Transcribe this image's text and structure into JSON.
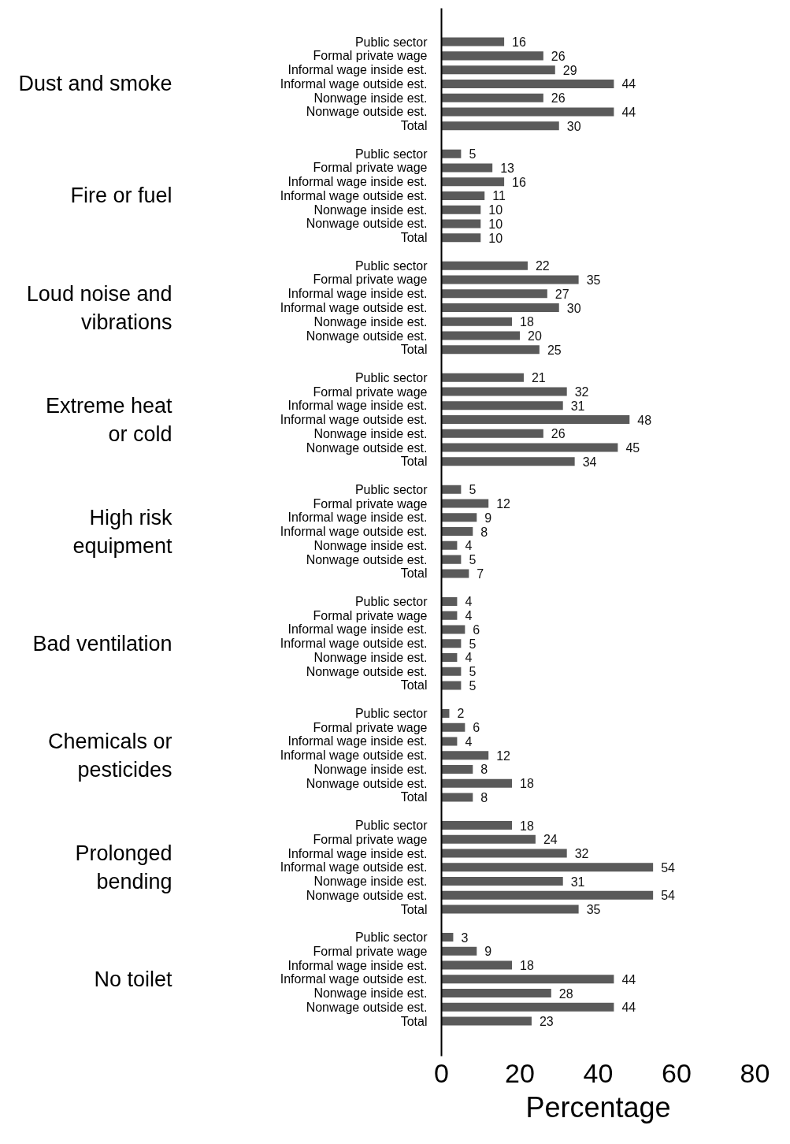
{
  "chart_data": {
    "type": "bar",
    "orientation": "horizontal",
    "xlabel": "Percentage",
    "color": "#5a5a5a",
    "data_labels": true,
    "xlim": [
      0,
      80
    ],
    "xticks": [
      0,
      20,
      40,
      60,
      80
    ],
    "annotations": [
      "Dust and smoke",
      "Fire or fuel",
      "Loud noise and\nvibrations",
      "Extreme heat\nor cold",
      "High risk\nequipment",
      "Bad ventilation",
      "Chemicals or\npesticides",
      "Prolonged\nbending",
      "No toilet"
    ],
    "categories": [
      "Public sector",
      "Formal private wage",
      "Informal wage inside est.",
      "Informal wage outside est.",
      "Nonwage inside est.",
      "Nonwage outside est.",
      "Total",
      "Public sector",
      "Formal private wage",
      "Informal wage inside est.",
      "Informal wage outside est.",
      "Nonwage inside est.",
      "Nonwage outside est.",
      "Total",
      "Public sector",
      "Formal private wage",
      "Informal wage inside est.",
      "Informal wage outside est.",
      "Nonwage inside est.",
      "Nonwage outside est.",
      "Total",
      "Public sector",
      "Formal private wage",
      "Informal wage inside est.",
      "Informal wage outside est.",
      "Nonwage inside est.",
      "Nonwage outside est.",
      "Total",
      "Public sector",
      "Formal private wage",
      "Informal wage inside est.",
      "Informal wage outside est.",
      "Nonwage inside est.",
      "Nonwage outside est.",
      "Total",
      "Public sector",
      "Formal private wage",
      "Informal wage inside est.",
      "Informal wage outside est.",
      "Nonwage inside est.",
      "Nonwage outside est.",
      "Total",
      "Public sector",
      "Formal private wage",
      "Informal wage inside est.",
      "Informal wage outside est.",
      "Nonwage inside est.",
      "Nonwage outside est.",
      "Total",
      "Public sector",
      "Formal private wage",
      "Informal wage inside est.",
      "Informal wage outside est.",
      "Nonwage inside est.",
      "Nonwage outside est.",
      "Total",
      "Public sector",
      "Formal private wage",
      "Informal wage inside est.",
      "Informal wage outside est.",
      "Nonwage inside est.",
      "Nonwage outside est.",
      "Total"
    ],
    "values": [
      16,
      26,
      29,
      44,
      26,
      44,
      30,
      5,
      13,
      16,
      11,
      10,
      10,
      10,
      22,
      35,
      27,
      30,
      18,
      20,
      25,
      21,
      32,
      31,
      48,
      26,
      45,
      34,
      5,
      12,
      9,
      8,
      4,
      5,
      7,
      4,
      4,
      6,
      5,
      4,
      5,
      5,
      2,
      6,
      4,
      12,
      8,
      18,
      8,
      18,
      24,
      32,
      54,
      31,
      54,
      35,
      3,
      9,
      18,
      44,
      28,
      44,
      23
    ]
  }
}
